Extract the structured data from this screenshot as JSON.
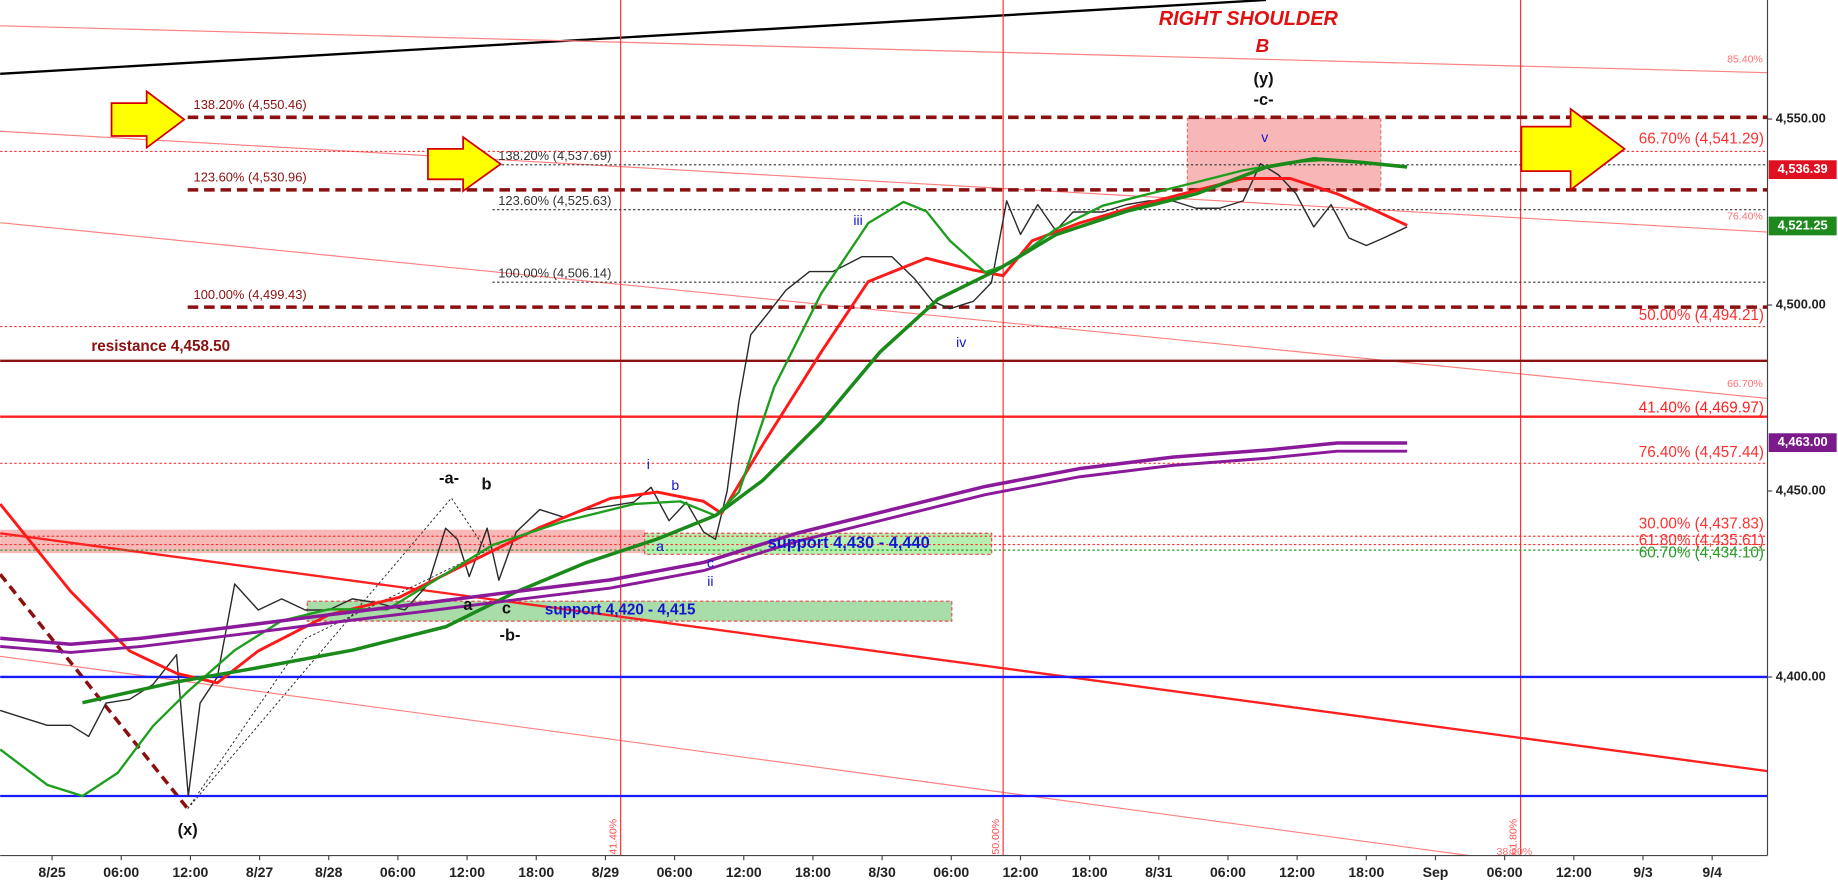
{
  "chart_data": {
    "type": "line",
    "xlim": [
      -0.75,
      24.8
    ],
    "ylim": [
      4352,
      4582
    ],
    "xticks": [
      {
        "value": 0,
        "label": "8/25"
      },
      {
        "value": 1,
        "label": "06:00"
      },
      {
        "value": 2,
        "label": "12:00"
      },
      {
        "value": 3,
        "label": "8/27"
      },
      {
        "value": 4,
        "label": "8/28"
      },
      {
        "value": 5,
        "label": "06:00"
      },
      {
        "value": 6,
        "label": "12:00"
      },
      {
        "value": 7,
        "label": "18:00"
      },
      {
        "value": 8,
        "label": "8/29"
      },
      {
        "value": 9,
        "label": "06:00"
      },
      {
        "value": 10,
        "label": "12:00"
      },
      {
        "value": 11,
        "label": "18:00"
      },
      {
        "value": 12,
        "label": "8/30"
      },
      {
        "value": 13,
        "label": "06:00"
      },
      {
        "value": 14,
        "label": "12:00"
      },
      {
        "value": 15,
        "label": "18:00"
      },
      {
        "value": 16,
        "label": "8/31"
      },
      {
        "value": 17,
        "label": "06:00"
      },
      {
        "value": 18,
        "label": "12:00"
      },
      {
        "value": 19,
        "label": "18:00"
      },
      {
        "value": 20,
        "label": "Sep"
      },
      {
        "value": 21,
        "label": "06:00"
      },
      {
        "value": 22,
        "label": "12:00"
      },
      {
        "value": 23,
        "label": "9/3"
      },
      {
        "value": 24,
        "label": "9/4"
      }
    ],
    "yticks": [
      {
        "value": 4400,
        "label": "4,400.00"
      },
      {
        "value": 4450,
        "label": "4,450.00"
      },
      {
        "value": 4500,
        "label": "4,500.00"
      },
      {
        "value": 4550,
        "label": "4,550.00"
      }
    ],
    "series": [
      {
        "color": "#2a2a2a",
        "x": [
          -0.75,
          -0.41,
          -0.07,
          0.27,
          0.53,
          0.78,
          1.12,
          1.46,
          1.8,
          1.97,
          2.14,
          2.39,
          2.64,
          2.98,
          3.32,
          3.66,
          4.0,
          4.34,
          4.68,
          5.1,
          5.44,
          5.69,
          5.86,
          6.03,
          6.29,
          6.46,
          6.71,
          7.05,
          7.39,
          7.73,
          8.07,
          8.41,
          8.66,
          8.92,
          9.17,
          9.42,
          9.59,
          9.76,
          9.93,
          10.1,
          10.36,
          10.61,
          10.95,
          11.29,
          11.71,
          12.14,
          12.47,
          12.73,
          12.98,
          13.32,
          13.58,
          13.8,
          14.0,
          14.25,
          14.51,
          14.76,
          15.19,
          15.53,
          15.86,
          16.2,
          16.54,
          16.88,
          17.22,
          17.47,
          17.73,
          17.98,
          18.24,
          18.49,
          18.75,
          19.0,
          19.25,
          19.59
        ],
        "values": [
          4391,
          4389,
          4387,
          4387,
          4384,
          4393,
          4394,
          4398,
          4406,
          4368,
          4393,
          4400,
          4425,
          4418,
          4421,
          4418,
          4418,
          4421,
          4420,
          4418,
          4425,
          4440,
          4437,
          4427,
          4440,
          4426,
          4439,
          4445,
          4443,
          4445,
          4446,
          4447,
          4451,
          4442,
          4447,
          4439,
          4437,
          4450,
          4474,
          4492,
          4498,
          4504,
          4509,
          4509,
          4513,
          4513,
          4507,
          4501,
          4499,
          4501,
          4506,
          4528,
          4519,
          4527,
          4520,
          4525,
          4525,
          4527,
          4528,
          4528,
          4526,
          4526,
          4528,
          4538,
          4535,
          4530,
          4521,
          4527,
          4518,
          4516,
          4518,
          4521
        ]
      },
      {
        "color": "#ff1a1a",
        "x": [
          -0.75,
          0.27,
          1.12,
          1.8,
          2.39,
          2.98,
          4.0,
          5.02,
          6.03,
          7.05,
          8.07,
          8.75,
          9.42,
          9.68,
          10.27,
          11.12,
          11.8,
          12.64,
          13.32,
          13.75,
          14.17,
          14.85,
          15.69,
          16.54,
          17.22,
          17.9,
          18.58,
          19.08,
          19.59
        ],
        "values": [
          4446.5,
          4423,
          4407,
          4401,
          4398.4,
          4407,
          4416.7,
          4421.4,
          4430.8,
          4440.2,
          4448,
          4449.7,
          4447.2,
          4444,
          4462.3,
          4487.4,
          4506.3,
          4512.6,
          4509.4,
          4507.9,
          4517.3,
          4522,
          4526.7,
          4530.8,
          4534,
          4534,
          4529.9,
          4525.8,
          4521.4
        ]
      },
      {
        "color": "#1e9e1e",
        "x": [
          -0.75,
          -0.07,
          0.44,
          0.95,
          1.46,
          1.97,
          2.64,
          3.32,
          4.0,
          4.85,
          5.69,
          6.37,
          7.39,
          8.41,
          9.08,
          9.59,
          9.93,
          10.44,
          11.12,
          11.8,
          12.31,
          12.64,
          12.98,
          13.49,
          13.83,
          14.51,
          15.19,
          15.86,
          16.54,
          17.22,
          17.9,
          18.41,
          18.92,
          19.59
        ],
        "values": [
          4380.5,
          4371,
          4368,
          4374.2,
          4386.8,
          4396.2,
          4407.2,
          4415.1,
          4418.2,
          4418.2,
          4427.7,
          4435.5,
          4441.8,
          4446.5,
          4447.2,
          4443.4,
          4449.7,
          4478,
          4503.1,
          4522,
          4527.7,
          4525.2,
          4517.3,
          4508.8,
          4511,
          4520.4,
          4526.7,
          4529.9,
          4533,
          4536.2,
          4538.4,
          4539,
          4538.4,
          4537.1
        ]
      },
      {
        "color": "#1a8a1a",
        "x": [
          0.44,
          1.8,
          2.98,
          4.34,
          5.69,
          6.71,
          7.73,
          8.75,
          9.59,
          10.27,
          11.12,
          11.97,
          12.81,
          13.66,
          14.51,
          15.53,
          16.54,
          17.56,
          18.24,
          18.92,
          19.59
        ],
        "values": [
          4393.1,
          4398.7,
          4402.5,
          4407.2,
          4413.5,
          4422.9,
          4430.8,
          4437.1,
          4443.4,
          4452.8,
          4468.5,
          4487.4,
          4501.6,
          4509.4,
          4518.9,
          4525.2,
          4529.9,
          4537.1,
          4539.3,
          4538.4,
          4537.1
        ]
      },
      {
        "color": "#8b1a9b",
        "x": [
          -0.75,
          0.27,
          1.29,
          2.64,
          4.0,
          5.36,
          6.71,
          8.07,
          9.42,
          10.78,
          12.14,
          13.49,
          14.85,
          16.2,
          17.56,
          18.58,
          19.59
        ],
        "values": [
          4410.4,
          4408.8,
          4410.4,
          4413.5,
          4416.7,
          4419.8,
          4423,
          4426.1,
          4430.8,
          4438.7,
          4445,
          4451.2,
          4456,
          4459.1,
          4461,
          4462.9,
          4462.9
        ]
      }
    ],
    "levels": [
      {
        "value": 4550.46,
        "label": "138.20% (4,550.46)",
        "style": "dashed",
        "color": "#8b1010"
      },
      {
        "value": 4530.96,
        "label": "123.60% (4,530.96)",
        "style": "dashed",
        "color": "#8b1010"
      },
      {
        "value": 4499.43,
        "label": "100.00% (4,499.43)",
        "style": "dashed",
        "color": "#8b1010"
      },
      {
        "value": 4537.69,
        "label": "138.20% (4,537.69)",
        "style": "dotted",
        "color": "#333333"
      },
      {
        "value": 4525.63,
        "label": "123.60% (4,525.63)",
        "style": "dotted",
        "color": "#333333"
      },
      {
        "value": 4506.14,
        "label": "100.00% (4,506.14)",
        "style": "dotted",
        "color": "#333333"
      },
      {
        "value": 4541.29,
        "label": "66.70% (4,541.29)",
        "style": "dotted",
        "color": "#ff3030"
      },
      {
        "value": 4494.21,
        "label": "50.00% (4,494.21)",
        "style": "dotted",
        "color": "#ff3030"
      },
      {
        "value": 4469.97,
        "label": "41.40% (4,469.97)",
        "style": "solid",
        "color": "#ff2020"
      },
      {
        "value": 4457.44,
        "label": "76.40% (4,457.44)",
        "style": "dotted",
        "color": "#ff3030"
      },
      {
        "value": 4437.83,
        "label": "30.00% (4,437.83)",
        "style": "dotted",
        "color": "#ff3030"
      },
      {
        "value": 4435.61,
        "label": "61.80% (4,435.61)",
        "style": "dotted",
        "color": "#ff3030"
      },
      {
        "value": 4434.1,
        "label": "60.70% (4,434.10)",
        "style": "dotted",
        "color": "#2a9a2a"
      },
      {
        "value": 4485,
        "style": "solid",
        "color": "#8b1010"
      },
      {
        "value": 4400,
        "style": "solid",
        "color": "#1a1aff"
      },
      {
        "value": 4368,
        "style": "solid",
        "color": "#1a1aff"
      }
    ],
    "vlines": [
      {
        "x": 8.22,
        "label": "41.40%"
      },
      {
        "x": 13.75,
        "label": "50.00%"
      },
      {
        "x": 21.23,
        "label": "61.80%"
      }
    ],
    "price_labels": [
      {
        "value": 4536.39,
        "label": "4,536.39",
        "color": "#e01020"
      },
      {
        "value": 4521.25,
        "label": "4,521.25",
        "color": "#1e8a1e"
      },
      {
        "value": 4463.0,
        "label": "4,463.00",
        "color": "#7a1a8b"
      }
    ],
    "annotations": [
      "RIGHT SHOULDER",
      "B",
      "(y)",
      "-c-",
      "v",
      "iii",
      "iv",
      "i",
      "b",
      "a",
      "c",
      "ii",
      "-a-",
      "b",
      "a",
      "c",
      "-b-",
      "(x)",
      "support 4,430 - 4,440",
      "support 4,420 - 4,415",
      "resistance 4,458.50",
      "85.40%",
      "76.40%",
      "66.70%",
      "38.20%"
    ]
  }
}
